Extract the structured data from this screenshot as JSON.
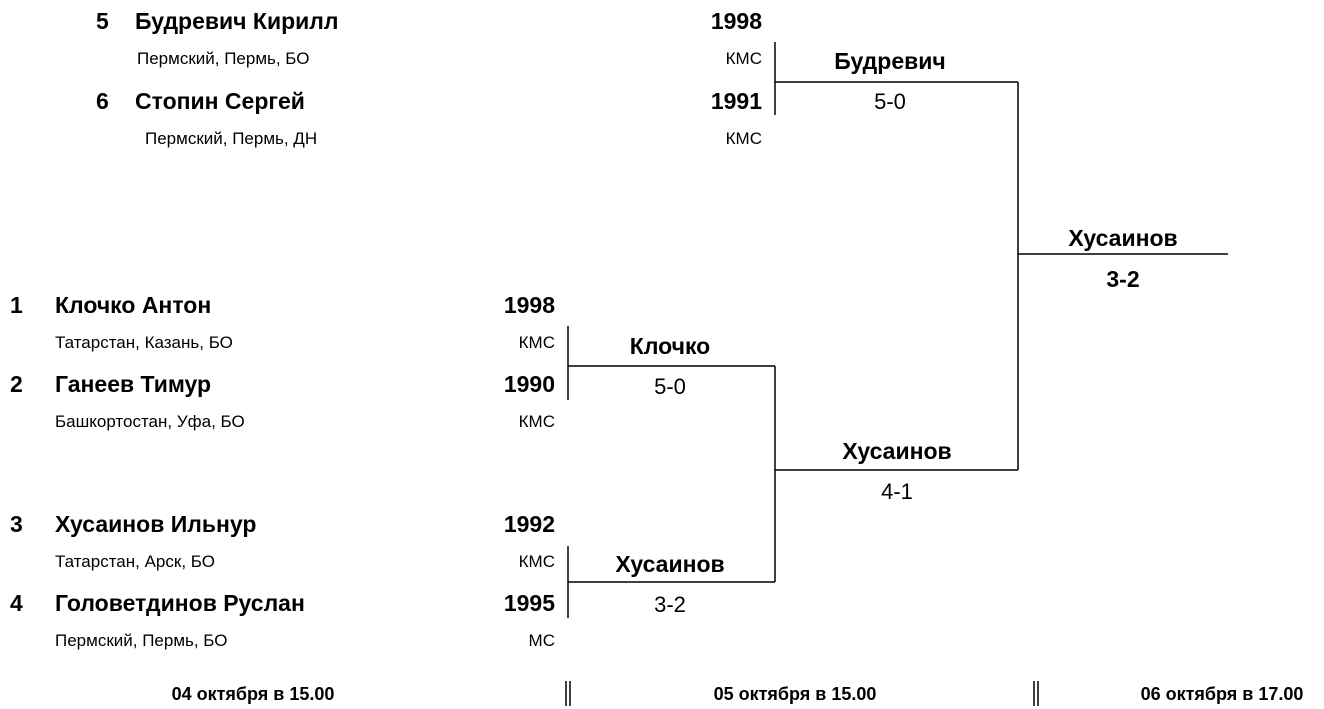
{
  "participants": [
    {
      "seed": 5,
      "name": "Будревич Кирилл",
      "region": "Пермский, Пермь, БО",
      "year": 1998,
      "rank": "КМС"
    },
    {
      "seed": 6,
      "name": "Стопин Сергей",
      "region": "Пермский, Пермь, ДН",
      "year": 1991,
      "rank": "КМС"
    },
    {
      "seed": 1,
      "name": "Клочко Антон",
      "region": "Татарстан, Казань, БО",
      "year": 1998,
      "rank": "КМС"
    },
    {
      "seed": 2,
      "name": "Ганеев Тимур",
      "region": "Башкортостан, Уфа, БО",
      "year": 1990,
      "rank": "КМС"
    },
    {
      "seed": 3,
      "name": "Хусаинов Ильнур",
      "region": "Татарстан, Арск, БО",
      "year": 1992,
      "rank": "КМС"
    },
    {
      "seed": 4,
      "name": "Головетдинов Руслан",
      "region": "Пермский, Пермь, БО",
      "year": 1995,
      "rank": "МС"
    }
  ],
  "matches": [
    {
      "winner": "Будревич",
      "score": "5-0"
    },
    {
      "winner": "Клочко",
      "score": "5-0"
    },
    {
      "winner": "Хусаинов",
      "score": "3-2"
    },
    {
      "winner": "Хусаинов",
      "score": "4-1"
    },
    {
      "winner": "Хусаинов",
      "score": "3-2"
    }
  ],
  "dates": [
    "04 октября в 15.00",
    "05 октября в 15.00",
    "06 октября в 17.00"
  ]
}
